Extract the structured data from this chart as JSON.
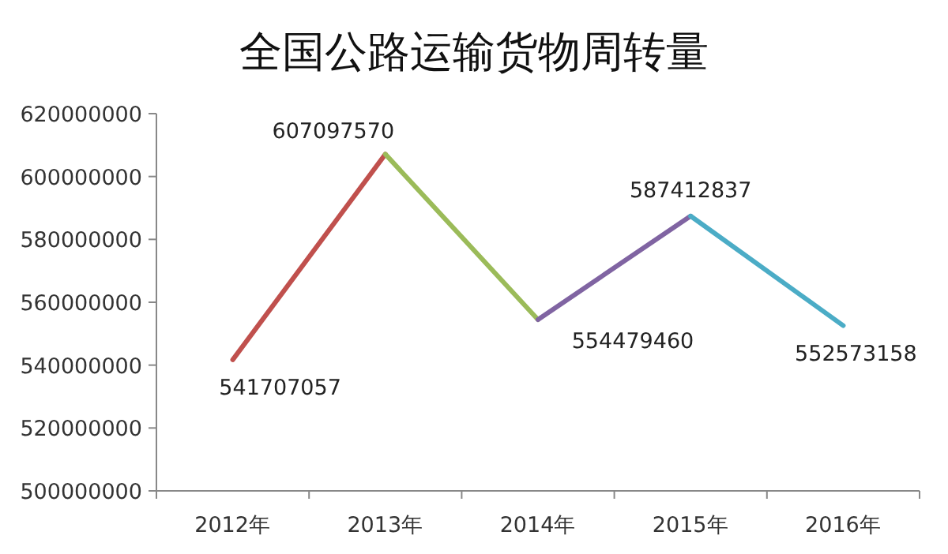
{
  "chart_data": {
    "type": "line",
    "title": "全国公路运输货物周转量",
    "categories": [
      "2012年",
      "2013年",
      "2014年",
      "2015年",
      "2016年"
    ],
    "ylim": [
      500000000,
      620000000
    ],
    "yticks": [
      500000000,
      520000000,
      540000000,
      560000000,
      580000000,
      600000000,
      620000000
    ],
    "grid": false,
    "marker": "none",
    "line_style": "solid",
    "series": [
      {
        "color": "#c0504d",
        "values": [
          541707057,
          607097570,
          null,
          null,
          null
        ],
        "value_labels": [
          "541707057",
          "607097570",
          null,
          null,
          null
        ]
      },
      {
        "color": "#9bbb59",
        "values": [
          null,
          607097570,
          554479460,
          null,
          null
        ],
        "value_labels": [
          null,
          null,
          "554479460",
          null,
          null
        ]
      },
      {
        "color": "#8064a2",
        "values": [
          null,
          null,
          554479460,
          587412837,
          null
        ],
        "value_labels": [
          null,
          null,
          null,
          "587412837",
          null
        ]
      },
      {
        "color": "#4bacc6",
        "values": [
          null,
          null,
          null,
          587412837,
          552573158
        ],
        "value_labels": [
          null,
          null,
          null,
          null,
          "552573158"
        ]
      }
    ]
  }
}
